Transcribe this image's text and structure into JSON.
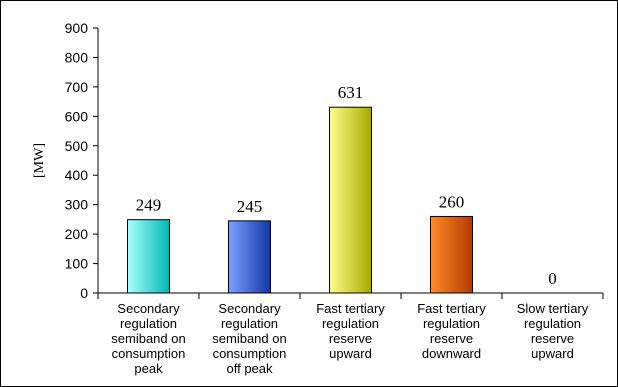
{
  "chart_data": {
    "type": "bar",
    "ylabel": "[MW]",
    "ylim": [
      0,
      900
    ],
    "yticks": [
      0,
      100,
      200,
      300,
      400,
      500,
      600,
      700,
      800,
      900
    ],
    "grid": false,
    "categories": [
      [
        "Secondary",
        "regulation",
        "semiband on",
        "consumption",
        "peak"
      ],
      [
        "Secondary",
        "regulation",
        "semiband on",
        "consumption",
        "off peak"
      ],
      [
        "Fast tertiary",
        "regulation",
        "reserve",
        "upward"
      ],
      [
        "Fast tertiary",
        "regulation",
        "reserve",
        "downward"
      ],
      [
        "Slow tertiary",
        "regulation",
        "reserve",
        "upward"
      ]
    ],
    "values": [
      249,
      245,
      631,
      260,
      0
    ],
    "data_labels": [
      "249",
      "245",
      "631",
      "260",
      "0"
    ],
    "bar_colors": [
      [
        "#a8ffff",
        "#00b8b8"
      ],
      [
        "#7aa0ff",
        "#1438a8"
      ],
      [
        "#ffff8a",
        "#a8a800"
      ],
      [
        "#ff8c2a",
        "#b33a00"
      ],
      [
        "#cccccc",
        "#888888"
      ]
    ]
  }
}
